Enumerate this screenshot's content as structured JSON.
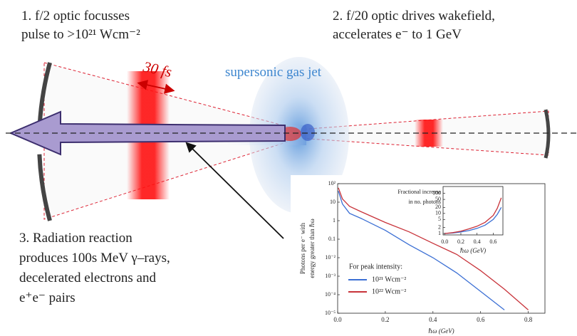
{
  "diagram": {
    "step1": [
      "1. f/2 optic focusses",
      "pulse to >10²¹ Wcm⁻²"
    ],
    "step2": [
      "2. f/20 optic drives wakefield,",
      "accelerates e⁻ to 1 GeV"
    ],
    "step3": [
      "3. Radiation reaction",
      "produces 100s MeV γ–rays,",
      "decelerated electrons and",
      "e⁺e⁻ pairs"
    ],
    "pulse_duration": "30 fs",
    "gas_jet": "supersonic gas jet"
  },
  "chart_data": [
    {
      "type": "line",
      "y_label": [
        "Photons per e⁻ with",
        "energy greater than ℏω"
      ],
      "x_label": "ℏω (GeV)",
      "legend_title": "For peak intensity:",
      "log_y": true,
      "x": [
        0.003,
        0.02,
        0.05,
        0.1,
        0.2,
        0.3,
        0.4,
        0.5,
        0.6,
        0.7,
        0.8
      ],
      "series": [
        {
          "name": "10²¹ Wcm⁻²",
          "color": "#3b6fd4",
          "values": [
            40,
            8,
            2.5,
            1.3,
            0.3,
            0.05,
            0.01,
            0.0015,
            0.00015,
            1.5e-05,
            null
          ]
        },
        {
          "name": "10²² Wcm⁻²",
          "color": "#c8333a",
          "values": [
            60,
            15,
            6,
            3,
            0.8,
            0.25,
            0.06,
            0.015,
            0.002,
            0.0002,
            1.5e-05
          ]
        }
      ],
      "xlim": [
        0,
        0.87
      ],
      "ylim": [
        1e-05,
        100
      ],
      "xticks": [
        {
          "value": 0,
          "label": "0.0"
        },
        0.2,
        0.4,
        0.6,
        0.8
      ],
      "yticks": [
        {
          "value": 1e-05,
          "label": "10⁻⁵"
        },
        {
          "value": 0.0001,
          "label": "10⁻⁴"
        },
        {
          "value": 0.001,
          "label": "10⁻³"
        },
        {
          "value": 0.01,
          "label": "10⁻²"
        },
        0.1,
        1,
        10,
        {
          "value": 100,
          "label": "10²"
        }
      ]
    },
    {
      "type": "line",
      "annotation": [
        "Fractional increase",
        "in no. photons"
      ],
      "x_label": "ℏω (GeV)",
      "log_y": true,
      "x": [
        0,
        0.1,
        0.2,
        0.3,
        0.4,
        0.5,
        0.6,
        0.65,
        0.7
      ],
      "series": [
        {
          "color": "#3b6fd4",
          "values": [
            1,
            1.05,
            1.2,
            1.4,
            1.8,
            2.6,
            5,
            9,
            20
          ]
        },
        {
          "color": "#c8333a",
          "values": [
            1,
            1.1,
            1.3,
            1.7,
            2.3,
            3.6,
            8,
            18,
            60
          ]
        }
      ],
      "xlim": [
        -0.02,
        0.72
      ],
      "ylim": [
        0.85,
        220
      ],
      "xticks": [
        {
          "value": 0,
          "label": "0.0"
        },
        0.2,
        0.4,
        0.6
      ],
      "yticks": [
        1,
        2,
        5,
        10,
        20,
        50,
        100
      ]
    }
  ]
}
